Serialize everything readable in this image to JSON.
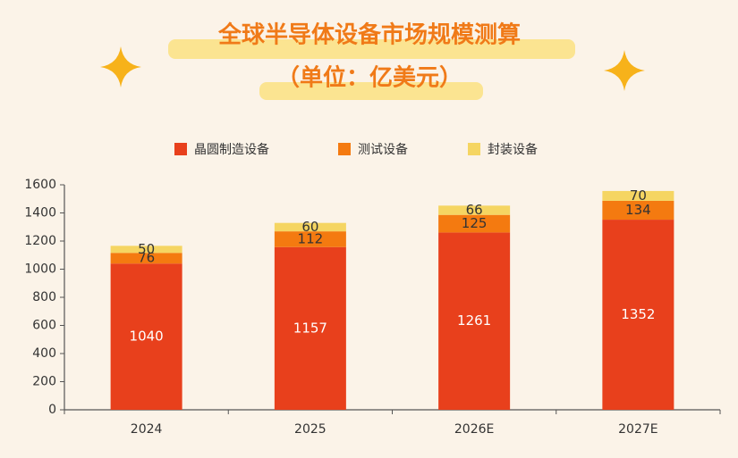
{
  "chart_data": {
    "type": "stacked_bar",
    "title": "全球半导体设备市场规模测算",
    "subtitle": "（单位：亿美元）",
    "categories": [
      "2024",
      "2025",
      "2026E",
      "2027E"
    ],
    "series": [
      {
        "name": "晶圆制造设备",
        "color": "#e8401c",
        "values": [
          1040,
          1157,
          1261,
          1352
        ]
      },
      {
        "name": "测试设备",
        "color": "#f47a10",
        "values": [
          76,
          112,
          125,
          134
        ]
      },
      {
        "name": "封装设备",
        "color": "#f5d562",
        "values": [
          50,
          60,
          66,
          70
        ]
      }
    ],
    "ylim": [
      0,
      1600
    ],
    "yticks": [
      0,
      200,
      400,
      600,
      800,
      1000,
      1200,
      1400,
      1600
    ]
  }
}
